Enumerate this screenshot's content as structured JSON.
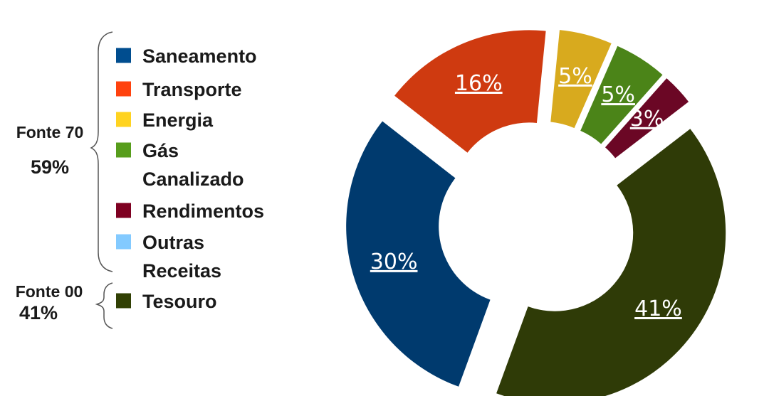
{
  "groups": [
    {
      "name": "Fonte 70",
      "value": "59%"
    },
    {
      "name": "Fonte 00",
      "value": "41%"
    }
  ],
  "chart_data": {
    "type": "pie",
    "donut": true,
    "exploded": true,
    "legend_position": "left",
    "labels": [
      "Saneamento",
      "Transporte",
      "Energia",
      "Gás Canalizado",
      "Rendimentos",
      "Outras Receitas",
      "Tesouro"
    ],
    "legend_lines": [
      [
        "Saneamento"
      ],
      [
        "Transporte"
      ],
      [
        "Energia"
      ],
      [
        "Gás",
        "Canalizado"
      ],
      [
        "Rendimentos"
      ],
      [
        "Outras",
        "Receitas"
      ],
      [
        "Tesouro"
      ]
    ],
    "values": [
      30,
      16,
      5,
      5,
      3,
      0,
      41
    ],
    "value_labels": [
      "30%",
      "16%",
      "5%",
      "5%",
      "3%",
      "",
      "41%"
    ],
    "colors": [
      "#003a6e",
      "#cf3a10",
      "#d8aa1e",
      "#4b8418",
      "#6b0725",
      "#8ac6f2",
      "#2f3b07"
    ],
    "legend_colors": [
      "#004d8f",
      "#ff420e",
      "#ffd320",
      "#579d1c",
      "#7e0021",
      "#83caff",
      "#314004"
    ]
  }
}
